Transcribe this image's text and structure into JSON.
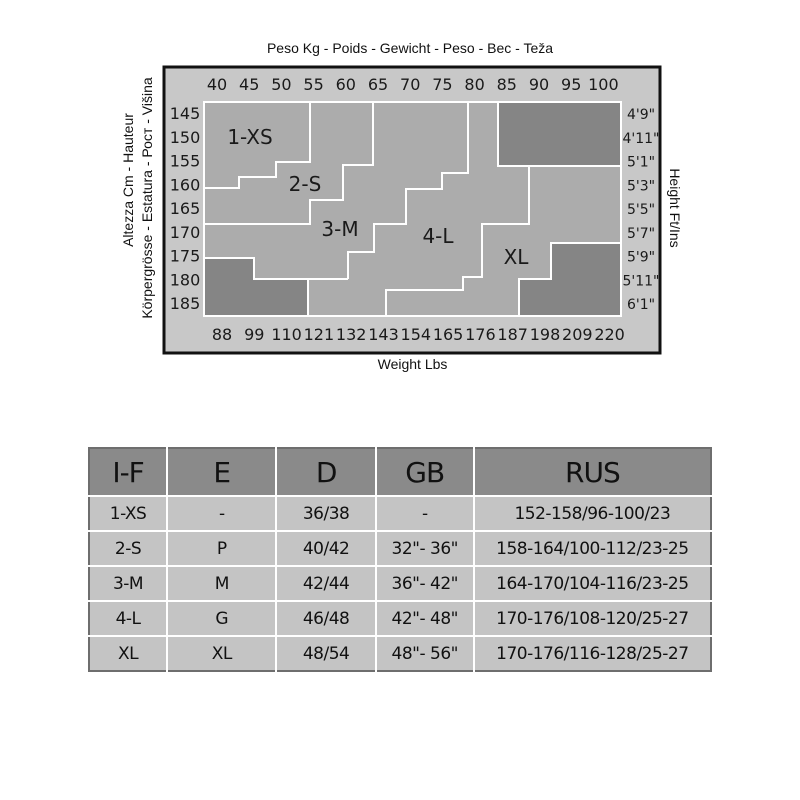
{
  "chart": {
    "top_title": "Peso Kg - Poids - Gewicht - Peso - Bec - Teža",
    "bottom_title": "Weight Lbs",
    "left_title_1": "Altezza Cm - Hauteur",
    "left_title_2": "Körpergrösse - Estatura - Рост - Višina",
    "right_title": "Height Ft/Ins",
    "kg_ticks": [
      "40",
      "45",
      "50",
      "55",
      "60",
      "65",
      "70",
      "75",
      "80",
      "85",
      "90",
      "95",
      "100"
    ],
    "lbs_ticks": [
      "88",
      "99",
      "110",
      "121",
      "132",
      "143",
      "154",
      "165",
      "176",
      "187",
      "198",
      "209",
      "220"
    ],
    "cm_ticks": [
      "145",
      "150",
      "155",
      "160",
      "165",
      "170",
      "175",
      "180",
      "185"
    ],
    "ft_ticks": [
      "4'9\"",
      "4'11\"",
      "5'1\"",
      "5'3\"",
      "5'5\"",
      "5'7\"",
      "5'9\"",
      "5'11\"",
      "6'1\""
    ],
    "regions": [
      "1-XS",
      "2-S",
      "3-M",
      "4-L",
      "XL"
    ],
    "colors": {
      "frame_bg": "#c8c8c8",
      "region": "#acacac",
      "excluded": "#858585",
      "header": "#8a8a8a",
      "cell": "#c4c4c4"
    }
  },
  "table": {
    "headers": [
      "I-F",
      "E",
      "D",
      "GB",
      "RUS"
    ],
    "rows": [
      [
        "1-XS",
        "-",
        "36/38",
        "-",
        "152-158/96-100/23"
      ],
      [
        "2-S",
        "P",
        "40/42",
        "32\"- 36\"",
        "158-164/100-112/23-25"
      ],
      [
        "3-M",
        "M",
        "42/44",
        "36\"- 42\"",
        "164-170/104-116/23-25"
      ],
      [
        "4-L",
        "G",
        "46/48",
        "42\"- 48\"",
        "170-176/108-120/25-27"
      ],
      [
        "XL",
        "XL",
        "48/54",
        "48\"- 56\"",
        "170-176/116-128/25-27"
      ]
    ]
  }
}
